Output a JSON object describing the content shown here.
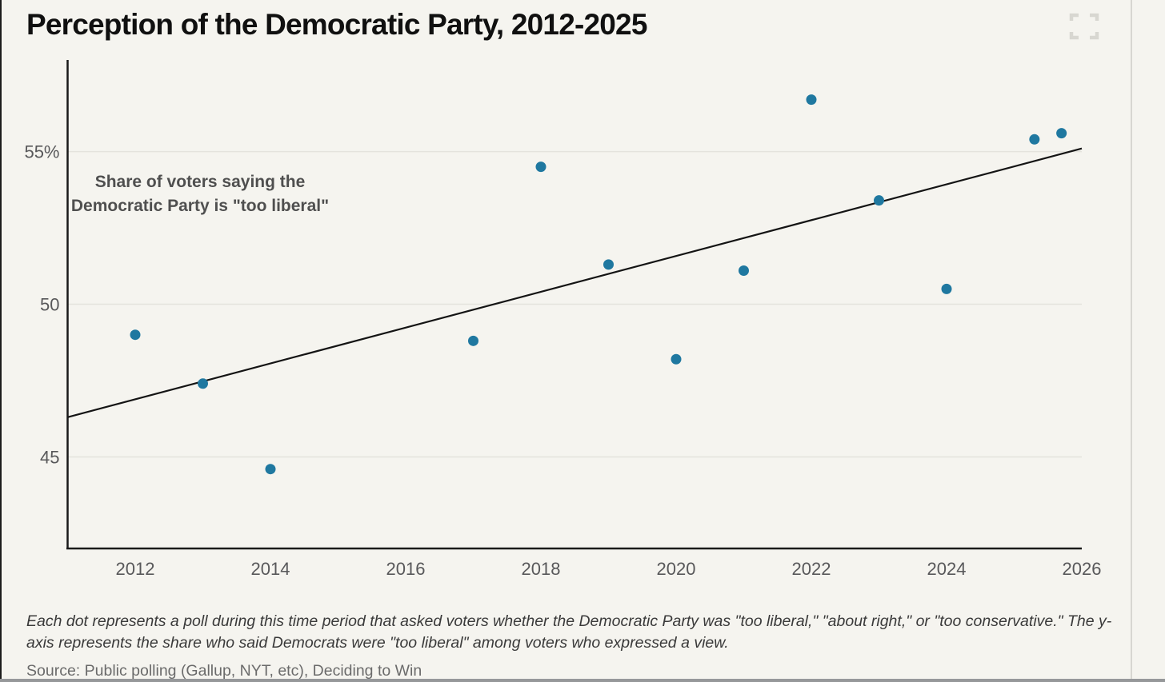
{
  "header": {
    "title": "Perception of the Democratic Party, 2012-2025",
    "fullscreen_icon": "fullscreen-expand-corners"
  },
  "colors": {
    "background": "#f5f4ef",
    "point": "#1f78a0",
    "trendline": "#141414",
    "axis": "#1a1a1a",
    "gridline": "#e4e3dd",
    "tick_label": "#58585a",
    "bottom_bar": "#96989a"
  },
  "chart_data": {
    "type": "scatter",
    "title": "Perception of the Democratic Party, 2012-2025",
    "annotation": "Share of voters saying the Democratic Party is \"too liberal\"",
    "xlabel": "",
    "ylabel": "",
    "xlim": [
      2011,
      2026
    ],
    "ylim": [
      42,
      58
    ],
    "grid": "horizontal-only",
    "x_ticks": [
      2012,
      2014,
      2016,
      2018,
      2020,
      2022,
      2024,
      2026
    ],
    "y_ticks": [
      {
        "value": 55,
        "label": "55%"
      },
      {
        "value": 50,
        "label": "50"
      },
      {
        "value": 45,
        "label": "45"
      }
    ],
    "point_color": "#1f78a0",
    "points": [
      {
        "year": 2012,
        "value": 49.0
      },
      {
        "year": 2013,
        "value": 47.4
      },
      {
        "year": 2014,
        "value": 44.6
      },
      {
        "year": 2017,
        "value": 48.8
      },
      {
        "year": 2018,
        "value": 54.5
      },
      {
        "year": 2019,
        "value": 51.3
      },
      {
        "year": 2020,
        "value": 48.2
      },
      {
        "year": 2021,
        "value": 51.1
      },
      {
        "year": 2022,
        "value": 56.7
      },
      {
        "year": 2023,
        "value": 53.4
      },
      {
        "year": 2024,
        "value": 50.5
      },
      {
        "year": 2025.3,
        "value": 55.4
      },
      {
        "year": 2025.7,
        "value": 55.6
      }
    ],
    "trendline": {
      "x": [
        2011,
        2026
      ],
      "y": [
        46.3,
        55.1
      ]
    }
  },
  "footer": {
    "note": "Each dot represents a poll during this time period that asked voters whether the Democratic Party was \"too liberal,\" \"about right,\" or \"too conservative.\" The y-axis represents the share who said Democrats were \"too liberal\" among voters who expressed a view.",
    "source": "Source: Public polling (Gallup, NYT, etc), Deciding to Win"
  }
}
